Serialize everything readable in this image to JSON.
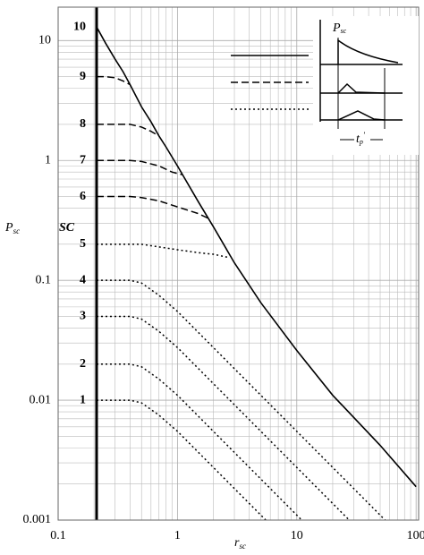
{
  "chart_data": {
    "type": "line",
    "x_label": {
      "main": "r",
      "sub": "sc"
    },
    "y_label": {
      "main": "P",
      "sub": "sc"
    },
    "curve_label_title": "SC",
    "log_x": true,
    "log_y": true,
    "grid": true,
    "xlim": [
      0.1,
      105
    ],
    "ylim": [
      0.001,
      19
    ],
    "xticks": [
      0.1,
      1,
      10,
      100
    ],
    "yticks": [
      0.001,
      0.01,
      0.1,
      1,
      10
    ],
    "vline": 0.21,
    "inset_labels": {
      "p": {
        "main": "P",
        "sub": "sc"
      },
      "t": "t",
      "t_sub": "p",
      "t_sup": "'"
    },
    "series": [
      {
        "name": "10",
        "style": "solid",
        "color": "#000000",
        "x": [
          0.21,
          0.25,
          0.3,
          0.35,
          0.4,
          0.5,
          0.6,
          0.7,
          0.8,
          1,
          1.5,
          2,
          3,
          5,
          10,
          20,
          50,
          100
        ],
        "values": [
          13,
          9.5,
          7,
          5.5,
          4.3,
          2.8,
          2.1,
          1.6,
          1.3,
          0.9,
          0.45,
          0.28,
          0.14,
          0.065,
          0.026,
          0.011,
          0.0042,
          0.0019
        ]
      },
      {
        "name": "9",
        "style": "dashed",
        "color": "#000000",
        "x": [
          0.21,
          0.25,
          0.3,
          0.35,
          0.4
        ],
        "values": [
          5,
          5,
          4.9,
          4.6,
          4.3
        ]
      },
      {
        "name": "8",
        "style": "dashed",
        "color": "#000000",
        "x": [
          0.21,
          0.3,
          0.4,
          0.5,
          0.6,
          0.7
        ],
        "values": [
          2,
          2,
          2,
          1.9,
          1.75,
          1.6
        ]
      },
      {
        "name": "7",
        "style": "dashed",
        "color": "#000000",
        "x": [
          0.21,
          0.4,
          0.5,
          0.7,
          0.9,
          1.1
        ],
        "values": [
          1,
          1,
          0.98,
          0.9,
          0.8,
          0.76
        ]
      },
      {
        "name": "6",
        "style": "dashed",
        "color": "#000000",
        "x": [
          0.21,
          0.4,
          0.5,
          0.7,
          1,
          1.5,
          1.8
        ],
        "values": [
          0.5,
          0.5,
          0.49,
          0.46,
          0.41,
          0.36,
          0.33
        ]
      },
      {
        "name": "5",
        "style": "dotted",
        "color": "#000000",
        "x": [
          0.21,
          0.4,
          0.5,
          0.7,
          1,
          1.5,
          2,
          2.7
        ],
        "values": [
          0.2,
          0.2,
          0.2,
          0.19,
          0.18,
          0.17,
          0.165,
          0.155
        ]
      },
      {
        "name": "4",
        "style": "dotted",
        "color": "#000000",
        "x": [
          0.21,
          0.4,
          0.5,
          0.7,
          1,
          2,
          5,
          10,
          20,
          55
        ],
        "values": [
          0.1,
          0.1,
          0.095,
          0.075,
          0.055,
          0.0275,
          0.011,
          0.0055,
          0.00275,
          0.001
        ]
      },
      {
        "name": "3",
        "style": "dotted",
        "color": "#000000",
        "x": [
          0.21,
          0.4,
          0.5,
          0.7,
          1,
          2,
          5,
          10,
          20,
          27.5
        ],
        "values": [
          0.05,
          0.05,
          0.0475,
          0.0375,
          0.0275,
          0.01375,
          0.0055,
          0.00275,
          0.001375,
          0.001
        ]
      },
      {
        "name": "2",
        "style": "dotted",
        "color": "#000000",
        "x": [
          0.21,
          0.4,
          0.5,
          0.7,
          1,
          2,
          5,
          10,
          11
        ],
        "values": [
          0.02,
          0.02,
          0.019,
          0.015,
          0.011,
          0.0055,
          0.0022,
          0.0011,
          0.001
        ]
      },
      {
        "name": "1",
        "style": "dotted",
        "color": "#000000",
        "x": [
          0.21,
          0.4,
          0.5,
          0.7,
          1,
          2,
          5,
          5.5
        ],
        "values": [
          0.01,
          0.01,
          0.0095,
          0.0075,
          0.0055,
          0.00275,
          0.0011,
          0.001
        ]
      }
    ]
  }
}
